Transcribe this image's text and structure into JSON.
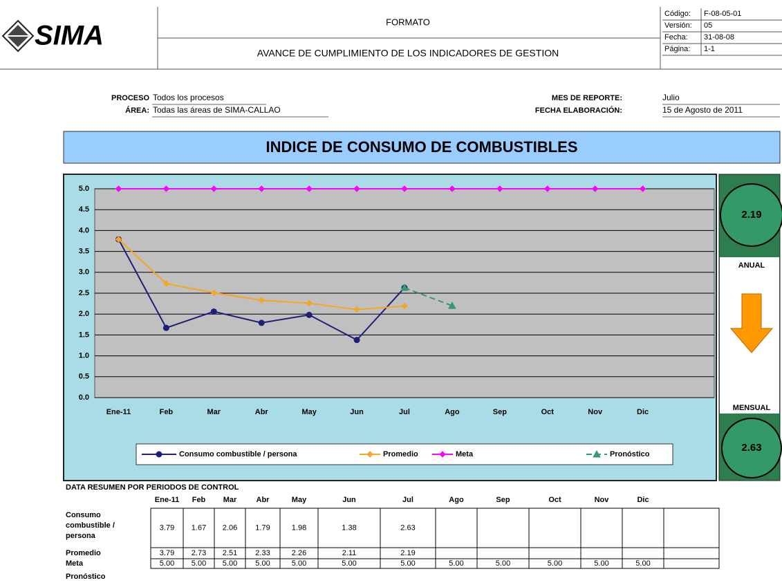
{
  "header": {
    "logo": "SIMA",
    "format": "FORMATO",
    "subtitle": "AVANCE DE CUMPLIMIENTO DE LOS INDICADORES DE GESTION",
    "info": [
      {
        "label": "Código:",
        "value": "F-08-05-01"
      },
      {
        "label": "Versión:",
        "value": "05"
      },
      {
        "label": "Fecha:",
        "value": "31-08-08"
      },
      {
        "label": "Página:",
        "value": "1-1"
      }
    ]
  },
  "process": {
    "process_label": "PROCESO",
    "process_value": "Todos los procesos",
    "area_label": "ÁREA:",
    "area_value": "Todas las áreas de SIMA-CALLAO",
    "month_label": "MES DE REPORTE:",
    "month_value": "Julio",
    "date_label": "FECHA ELABORACIÓN:",
    "date_value": "15 de Agosto de 2011"
  },
  "banner": "INDICE DE CONSUMO DE COMBUSTIBLES",
  "chart_data": {
    "type": "line",
    "categories": [
      "Ene-11",
      "Feb",
      "Mar",
      "Abr",
      "May",
      "Jun",
      "Jul",
      "Ago",
      "Sep",
      "Oct",
      "Nov",
      "Dic"
    ],
    "series": [
      {
        "name": "Consumo combustible / persona",
        "color": "#1f1f7a",
        "marker": "circle",
        "values": [
          3.79,
          1.67,
          2.06,
          1.79,
          1.98,
          1.38,
          2.63,
          null,
          null,
          null,
          null,
          null
        ]
      },
      {
        "name": "Promedio",
        "color": "#f5a623",
        "marker": "diamond",
        "values": [
          3.79,
          2.73,
          2.51,
          2.33,
          2.26,
          2.11,
          2.19,
          null,
          null,
          null,
          null,
          null
        ]
      },
      {
        "name": "Meta",
        "color": "#ff00ff",
        "marker": "diamond",
        "values": [
          5,
          5,
          5,
          5,
          5,
          5,
          5,
          5,
          5,
          5,
          5,
          5
        ]
      },
      {
        "name": "Pronóstico",
        "color": "#339977",
        "marker": "triangle",
        "dash": true,
        "values": [
          null,
          null,
          null,
          null,
          null,
          null,
          2.63,
          2.2,
          null,
          null,
          null,
          null
        ]
      }
    ],
    "ylim": [
      0,
      5
    ],
    "yticks": [
      {
        "value": 0,
        "label": "0.0"
      },
      0.5,
      {
        "value": 1,
        "label": "1.0"
      },
      1.5,
      {
        "value": 2,
        "label": "2.0"
      },
      2.5,
      {
        "value": 3,
        "label": "3.0"
      },
      3.5,
      {
        "value": 4,
        "label": "4.0"
      },
      4.5,
      {
        "value": 5,
        "label": "5.0"
      }
    ],
    "grid": true,
    "legend": "bottom"
  },
  "side_panel": {
    "annual_value": "2.19",
    "annual_label": "ANUAL",
    "monthly_label": "MENSUAL",
    "monthly_value": "2.63"
  },
  "table": {
    "title": "DATA  RESUMEN POR PERIODOS DE CONTROL",
    "rows": [
      {
        "label": "Consumo combustible / persona",
        "values": [
          "3.79",
          "1.67",
          "2.06",
          "1.79",
          "1.98",
          "1.38",
          "2.63"
        ]
      },
      {
        "label": "Promedio",
        "values": [
          "3.79",
          "2.73",
          "2.51",
          "2.33",
          "2.26",
          "2.11",
          "2.19"
        ]
      },
      {
        "label": "Meta",
        "values": [
          "5.00",
          "5.00",
          "5.00",
          "5.00",
          "5.00",
          "5.00",
          "5.00",
          "5.00",
          "5.00",
          "5.00",
          "5.00",
          "5.00"
        ]
      },
      {
        "label": "Pronóstico"
      }
    ]
  }
}
